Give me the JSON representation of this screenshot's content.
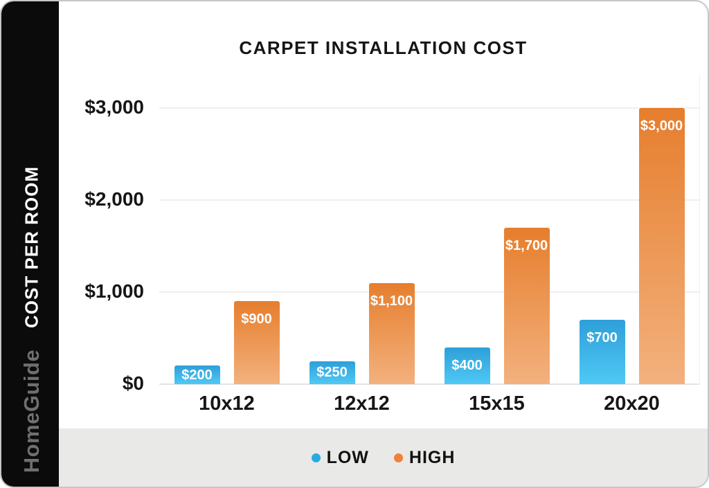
{
  "page": {
    "border_color": "#c6c6c6",
    "background": "#ffffff"
  },
  "sidebar": {
    "vertical_label": "COST PER ROOM",
    "brand": "HomeGuide",
    "background": "#0b0b0b",
    "label_color": "#ffffff",
    "brand_color": "#6f6f6f"
  },
  "chart_data": {
    "type": "bar",
    "title": "CARPET INSTALLATION COST",
    "categories": [
      "10x12",
      "12x12",
      "15x15",
      "20x20"
    ],
    "series": [
      {
        "name": "LOW",
        "values": [
          200,
          250,
          400,
          700
        ],
        "labels": [
          "$200",
          "$250",
          "$400",
          "$700"
        ],
        "color_top": "#2e9fd9",
        "color_bottom": "#4fc9f5",
        "legend_dot": "#29abe2"
      },
      {
        "name": "HIGH",
        "values": [
          900,
          1100,
          1700,
          3000
        ],
        "labels": [
          "$900",
          "$1,100",
          "$1,700",
          "$3,000"
        ],
        "color_top": "#e67e2d",
        "color_bottom": "#f3b17e",
        "legend_dot": "#f0813a"
      }
    ],
    "ylabel": "COST PER ROOM",
    "xlabel": "",
    "y_ticks": [
      {
        "label": "$0",
        "value": 0
      },
      {
        "label": "$1,000",
        "value": 1000
      },
      {
        "label": "$2,000",
        "value": 2000
      },
      {
        "label": "$3,000",
        "value": 3000
      }
    ],
    "ylim": [
      0,
      3000
    ],
    "grid": true,
    "gridline_color": "#efefef",
    "axis_line_color": "#e4e4e4",
    "value_label_color": "#ffffff",
    "legend_position": "bottom",
    "legend_background": "#e9e9e8"
  }
}
